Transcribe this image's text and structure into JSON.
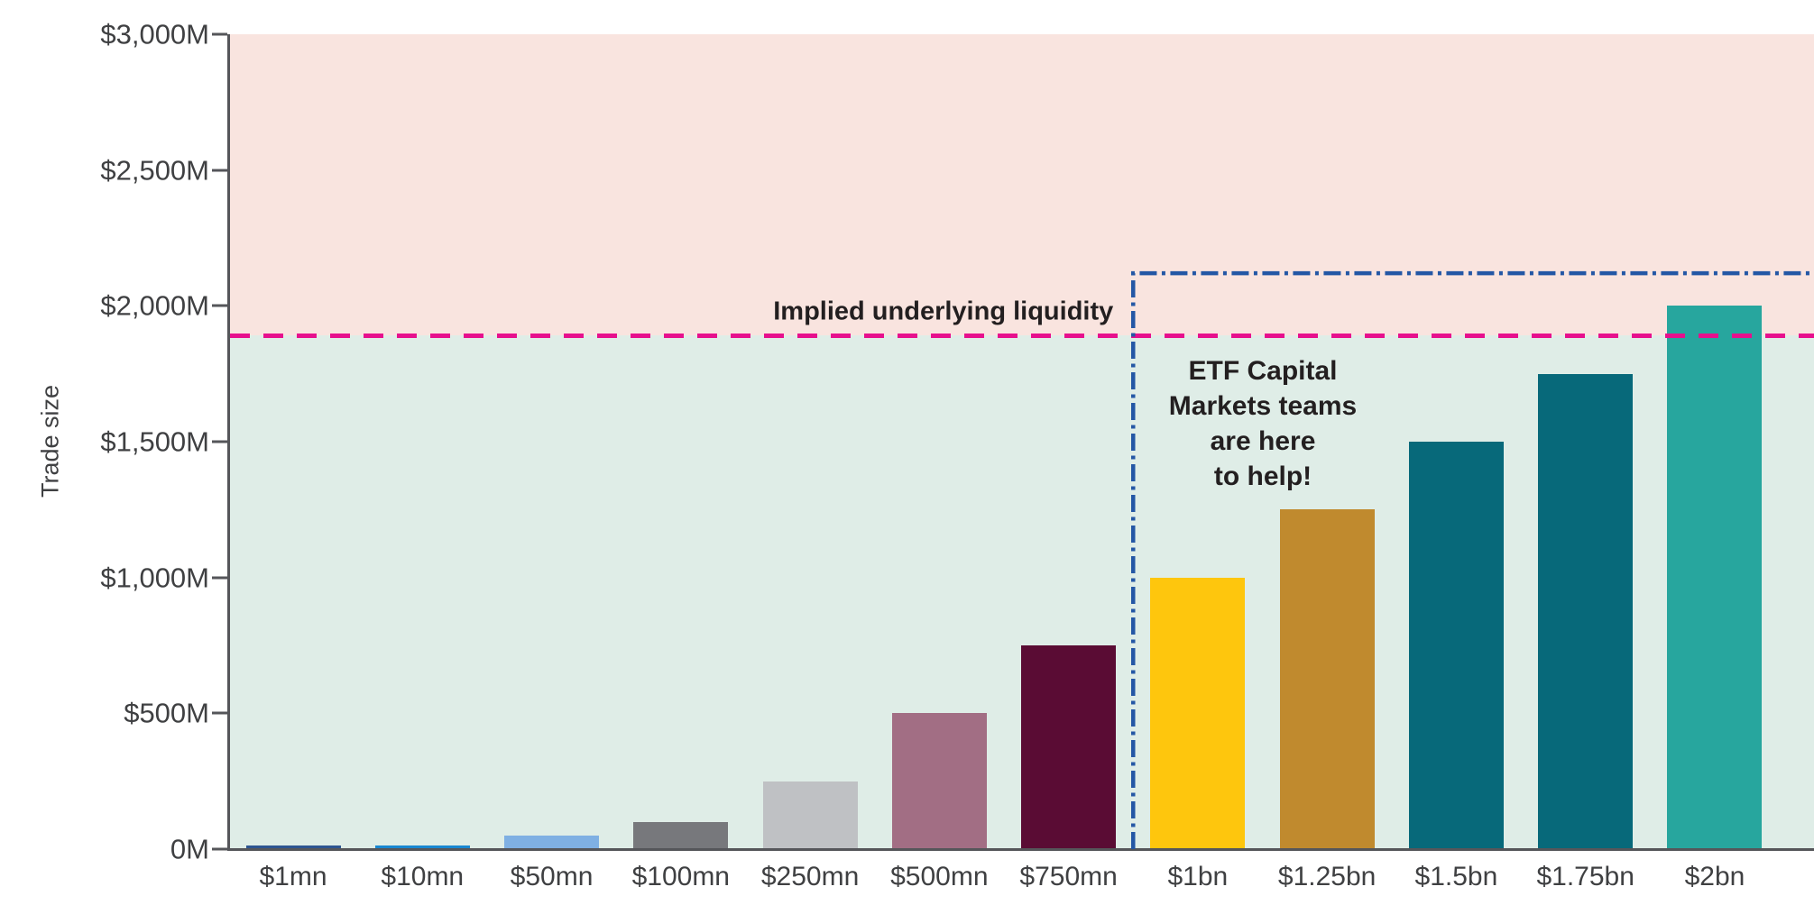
{
  "chart_data": {
    "type": "bar",
    "title": "",
    "xlabel": "",
    "ylabel": "Trade size",
    "categories": [
      "$1mn",
      "$10mn",
      "$50mn",
      "$100mn",
      "$250mn",
      "$500mn",
      "$750mn",
      "$1bn",
      "$1.25bn",
      "$1.5bn",
      "$1.75bn",
      "$2bn"
    ],
    "values_musd": [
      1,
      10,
      50,
      100,
      250,
      500,
      750,
      1000,
      1250,
      1500,
      1750,
      2000
    ],
    "bar_colors": [
      "#2d5591",
      "#1787d1",
      "#7fb0e3",
      "#77787c",
      "#bfc1c4",
      "#a26e84",
      "#5a0c34",
      "#fec60d",
      "#c08a2e",
      "#07697a",
      "#07697a",
      "#27a69e"
    ],
    "ylim": [
      0,
      3000
    ],
    "y_ticks": [
      {
        "label": "$3,000M",
        "value": 3000
      },
      {
        "label": "$2,500M",
        "value": 2500
      },
      {
        "label": "$2,000M",
        "value": 2000
      },
      {
        "label": "$1,500M",
        "value": 1500
      },
      {
        "label": "$1,000M",
        "value": 1000
      },
      {
        "label": "$500M",
        "value": 500
      },
      {
        "label": "0M",
        "value": 0
      }
    ],
    "grid": false,
    "legend": false,
    "annotations": {
      "implied_liquidity_label": "Implied underlying liquidity",
      "implied_liquidity_level_musd": 1890,
      "etf_note": "ETF Capital\nMarkets teams\nare here\nto help!",
      "highlight_box_start_category": "$1bn",
      "highlight_box_top_musd": 2120
    },
    "colors": {
      "above_liquidity_bg": "#f9e4df",
      "below_liquidity_bg": "#dfede7",
      "liquidity_line": "#e7108d",
      "highlight_box_line": "#2457a5",
      "axis": "#55565a",
      "tick_text": "#3f4042",
      "annotation_text": "#231f20"
    }
  }
}
